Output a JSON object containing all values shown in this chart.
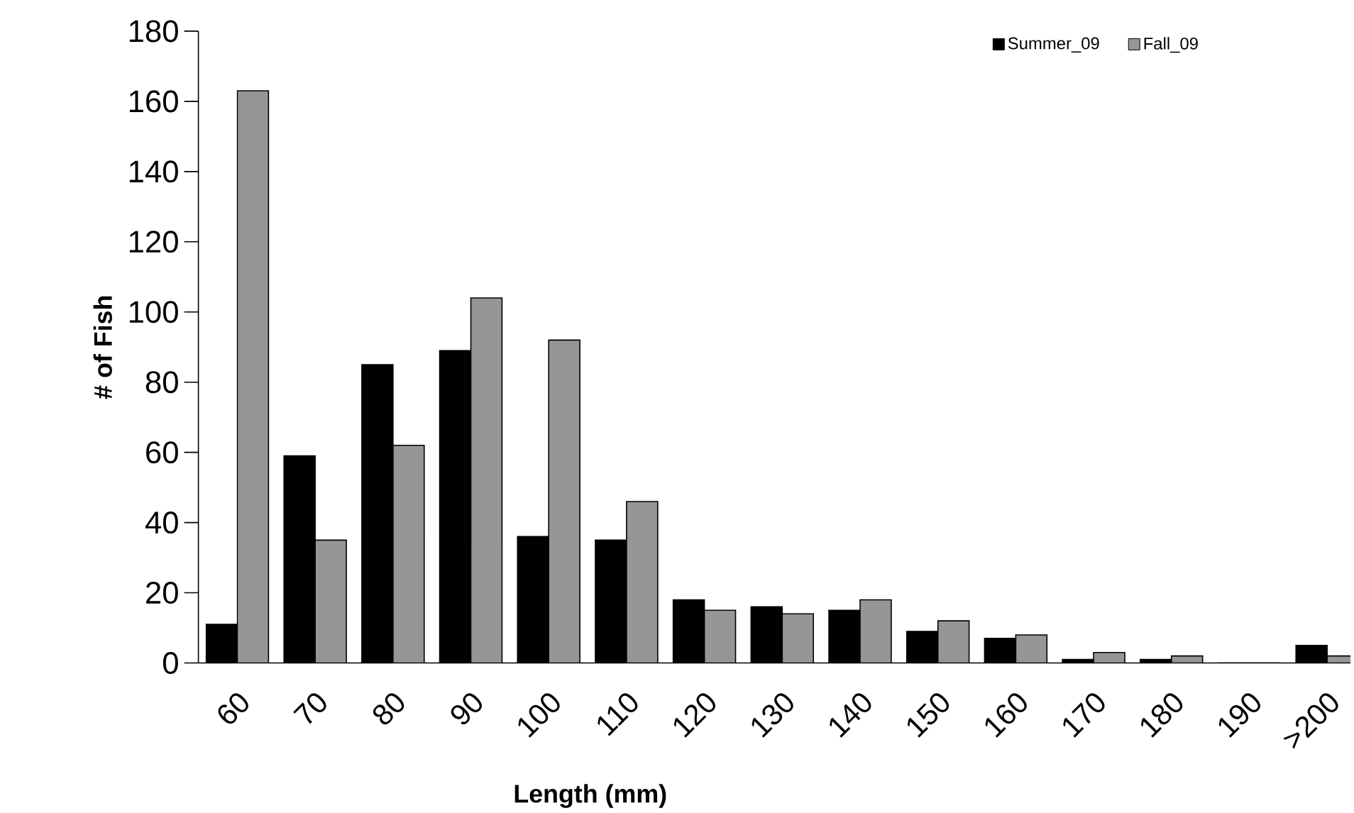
{
  "chart_data": {
    "type": "bar",
    "xlabel": "Length (mm)",
    "ylabel": "# of Fish",
    "categories": [
      "60",
      "70",
      "80",
      "90",
      "100",
      "110",
      "120",
      "130",
      "140",
      "150",
      "160",
      "170",
      "180",
      "190",
      ">200"
    ],
    "series": [
      {
        "name": "Summer_09",
        "color": "#000000",
        "values": [
          11,
          59,
          85,
          89,
          36,
          35,
          18,
          16,
          15,
          9,
          7,
          1,
          1,
          0,
          5
        ]
      },
      {
        "name": "Fall_09",
        "color": "#969696",
        "values": [
          163,
          35,
          62,
          104,
          92,
          46,
          15,
          14,
          18,
          12,
          8,
          3,
          2,
          0,
          2
        ]
      }
    ],
    "ylim": [
      0,
      180
    ],
    "yticks": [
      0,
      20,
      40,
      60,
      80,
      100,
      120,
      140,
      160,
      180
    ],
    "legend": "top right"
  }
}
